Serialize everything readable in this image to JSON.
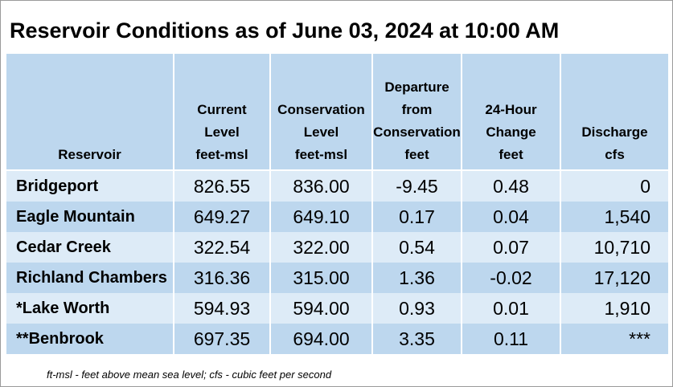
{
  "title": "Reservoir Conditions as of June 03, 2024 at 10:00 AM",
  "columns": [
    [
      "Reservoir"
    ],
    [
      "Current",
      "Level",
      "feet-msl"
    ],
    [
      "Conservation",
      "Level",
      "feet-msl"
    ],
    [
      "Departure",
      "from",
      "Conservation",
      "feet"
    ],
    [
      "24-Hour",
      "Change",
      "feet"
    ],
    [
      "Discharge",
      "cfs"
    ]
  ],
  "rows": [
    [
      "Bridgeport",
      "826.55",
      "836.00",
      "-9.45",
      "0.48",
      "0"
    ],
    [
      "Eagle Mountain",
      "649.27",
      "649.10",
      "0.17",
      "0.04",
      "1,540"
    ],
    [
      "Cedar Creek",
      "322.54",
      "322.00",
      "0.54",
      "0.07",
      "10,710"
    ],
    [
      "Richland Chambers",
      "316.36",
      "315.00",
      "1.36",
      "-0.02",
      "17,120"
    ],
    [
      "*Lake Worth",
      "594.93",
      "594.00",
      "0.93",
      "0.01",
      "1,910"
    ],
    [
      "**Benbrook",
      "697.35",
      "694.00",
      "3.35",
      "0.11",
      "***"
    ]
  ],
  "footnote": "ft-msl - feet above mean sea level; cfs - cubic feet per second"
}
